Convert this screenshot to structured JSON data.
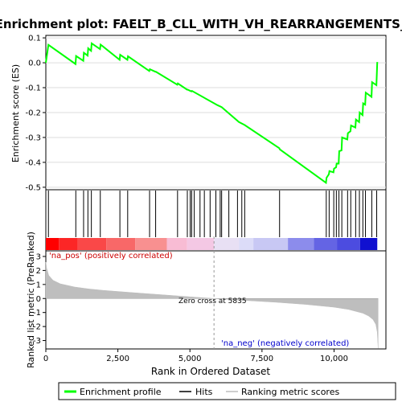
{
  "chart_data": {
    "type": "line",
    "title": "Enrichment plot: FAELT_B_CLL_WITH_VH_REARRANGEMENTS_DN",
    "xlabel": "Rank in Ordered Dataset",
    "xlim": [
      0,
      11800
    ],
    "x_ticks": [
      0,
      2500,
      5000,
      7500,
      10000
    ],
    "x_tick_labels": [
      "0",
      "2,500",
      "5,000",
      "7,500",
      "10,000"
    ],
    "panels": {
      "enrichment": {
        "ylabel": "Enrichment score (ES)",
        "ylim": [
          -0.51,
          0.11
        ],
        "y_ticks": [
          0.1,
          0.0,
          -0.1,
          -0.2,
          -0.3,
          -0.4,
          -0.5
        ],
        "y_tick_labels": [
          "0.1",
          "0.0",
          "-0.1",
          "-0.2",
          "-0.3",
          "-0.4",
          "-0.5"
        ],
        "series": [
          {
            "name": "Enrichment profile",
            "color": "#00ff00",
            "x": [
              0,
              90,
              1030,
              1050,
              1300,
              1320,
              1450,
              1470,
              1570,
              1590,
              1880,
              1900,
              2560,
              2580,
              2830,
              2850,
              3590,
              3610,
              3800,
              3820,
              4560,
              4580,
              4900,
              4920,
              5050,
              5070,
              5950,
              6100,
              6700,
              6900,
              8100,
              8120,
              9720,
              9740,
              9820,
              9840,
              9980,
              10000,
              10070,
              10090,
              10160,
              10180,
              10260,
              10280,
              10460,
              10480,
              10570,
              10590,
              10740,
              10760,
              10870,
              10890,
              10990,
              11010,
              11080,
              11100,
              11300,
              11320,
              11470,
              11500
            ],
            "y": [
              0.0,
              0.072,
              -0.005,
              0.027,
              0.008,
              0.04,
              0.029,
              0.058,
              0.048,
              0.078,
              0.055,
              0.073,
              0.012,
              0.032,
              0.012,
              0.026,
              -0.033,
              -0.026,
              -0.036,
              -0.036,
              -0.088,
              -0.083,
              -0.108,
              -0.108,
              -0.115,
              -0.113,
              -0.17,
              -0.178,
              -0.238,
              -0.25,
              -0.343,
              -0.348,
              -0.482,
              -0.462,
              -0.448,
              -0.435,
              -0.44,
              -0.425,
              -0.42,
              -0.405,
              -0.405,
              -0.355,
              -0.352,
              -0.3,
              -0.308,
              -0.283,
              -0.275,
              -0.252,
              -0.26,
              -0.228,
              -0.238,
              -0.2,
              -0.21,
              -0.163,
              -0.168,
              -0.12,
              -0.137,
              -0.078,
              -0.09,
              0.003
            ]
          }
        ]
      },
      "hits": {
        "name": "Hits",
        "x": [
          90,
          1040,
          1310,
          1460,
          1580,
          1890,
          2570,
          2840,
          3600,
          3810,
          4570,
          4910,
          5010,
          5060,
          5150,
          5350,
          5500,
          5700,
          5900,
          6050,
          6100,
          6350,
          6650,
          6800,
          6900,
          8110,
          9730,
          9830,
          9990,
          10080,
          10170,
          10270,
          10470,
          10580,
          10750,
          10880,
          11000,
          11090,
          11310,
          11480
        ]
      },
      "ranking_metric": {
        "name": "Ranking metric scores",
        "ylabel": "Ranked list metric (PreRanked)",
        "ylim": [
          -3.6,
          3.4
        ],
        "y_ticks": [
          3,
          2,
          1,
          0,
          -1,
          -2,
          -3
        ],
        "y_tick_labels": [
          "3",
          "2",
          "1",
          "0",
          "-1",
          "-2",
          "-3"
        ],
        "x": [
          0,
          30,
          100,
          250,
          500,
          1000,
          1500,
          2000,
          3000,
          4000,
          5000,
          5835,
          7000,
          8000,
          9000,
          10000,
          10500,
          11000,
          11200,
          11350,
          11450,
          11500,
          11530
        ],
        "y": [
          2.6,
          2.15,
          1.65,
          1.3,
          1.05,
          0.82,
          0.68,
          0.58,
          0.42,
          0.27,
          0.12,
          0.0,
          -0.15,
          -0.27,
          -0.42,
          -0.62,
          -0.78,
          -1.05,
          -1.25,
          -1.5,
          -1.85,
          -2.4,
          -3.55
        ],
        "zero_cross_label": "Zero cross at 5835",
        "zero_cross_x": 5835,
        "pos_label": "'na_pos' (positively correlated)",
        "neg_label": "'na_neg' (negatively correlated)"
      },
      "heat_bar": {
        "segments": [
          {
            "from": 0,
            "to": 450,
            "color": "#ff0000"
          },
          {
            "from": 450,
            "to": 1100,
            "color": "#fc2626"
          },
          {
            "from": 1100,
            "to": 2100,
            "color": "#fa4848"
          },
          {
            "from": 2100,
            "to": 3100,
            "color": "#f86868"
          },
          {
            "from": 3100,
            "to": 4200,
            "color": "#f89090"
          },
          {
            "from": 4200,
            "to": 4900,
            "color": "#f8bcd4"
          },
          {
            "from": 4900,
            "to": 5835,
            "color": "#f4c8e4"
          },
          {
            "from": 5835,
            "to": 6700,
            "color": "#e8e0f4"
          },
          {
            "from": 6700,
            "to": 7200,
            "color": "#dcdcf8"
          },
          {
            "from": 7200,
            "to": 8400,
            "color": "#c8c8f4"
          },
          {
            "from": 8400,
            "to": 9300,
            "color": "#8c8cec"
          },
          {
            "from": 9300,
            "to": 10100,
            "color": "#6464e4"
          },
          {
            "from": 10100,
            "to": 10900,
            "color": "#4c4ce0"
          },
          {
            "from": 10900,
            "to": 11500,
            "color": "#1010d0"
          }
        ]
      }
    },
    "legend": {
      "placement": "bottom",
      "entries": [
        {
          "label": "Enrichment profile",
          "color": "#00ff00",
          "style": "thick-line"
        },
        {
          "label": "Hits",
          "color": "#000000",
          "style": "line"
        },
        {
          "label": "Ranking metric scores",
          "color": "#bebebe",
          "style": "line"
        }
      ]
    }
  }
}
